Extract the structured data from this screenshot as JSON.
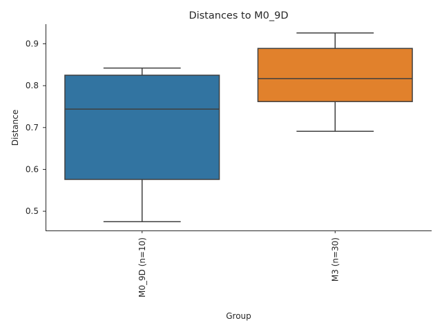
{
  "chart_data": {
    "type": "box",
    "title": "Distances to M0_9D",
    "xlabel": "Group",
    "ylabel": "Distance",
    "ylim": [
      0.454,
      0.947
    ],
    "yticks": [
      0.5,
      0.6,
      0.7,
      0.8,
      0.9
    ],
    "ytick_labels": [
      "0.5",
      "0.6",
      "0.7",
      "0.8",
      "0.9"
    ],
    "grid": false,
    "categories": [
      "M0_9D (n=10)",
      "M3 (n=30)"
    ],
    "boxes": [
      {
        "name": "M0_9D (n=10)",
        "whisker_low": 0.475,
        "q1": 0.576,
        "median": 0.744,
        "q3": 0.825,
        "whisker_high": 0.842,
        "color": "#3274a1"
      },
      {
        "name": "M3 (n=30)",
        "whisker_low": 0.691,
        "q1": 0.762,
        "median": 0.817,
        "q3": 0.889,
        "whisker_high": 0.926,
        "color": "#e1812c"
      }
    ]
  }
}
